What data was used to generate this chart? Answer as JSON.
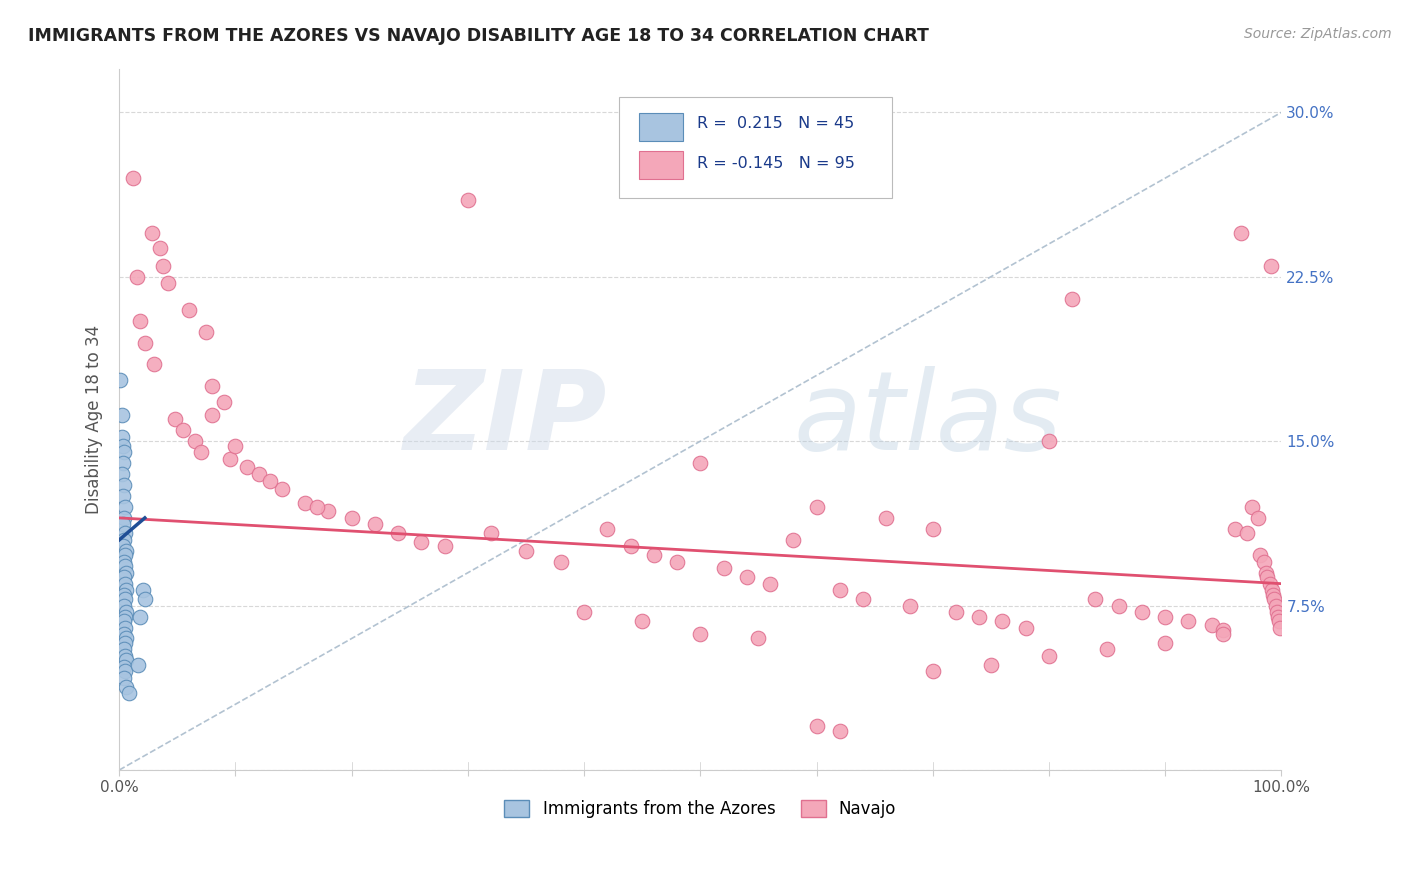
{
  "title": "IMMIGRANTS FROM THE AZORES VS NAVAJO DISABILITY AGE 18 TO 34 CORRELATION CHART",
  "source": "Source: ZipAtlas.com",
  "ylabel": "Disability Age 18 to 34",
  "xlim": [
    0,
    1.0
  ],
  "ylim": [
    0,
    0.32
  ],
  "legend_labels": [
    "Immigrants from the Azores",
    "Navajo"
  ],
  "blue_color": "#a8c4e0",
  "pink_color": "#f4a7b9",
  "blue_edge_color": "#5b8db8",
  "pink_edge_color": "#e07090",
  "blue_line_color": "#1f4e96",
  "pink_line_color": "#e05070",
  "dashed_line_color": "#aabccc",
  "R_blue": 0.215,
  "N_blue": 45,
  "R_pink": -0.145,
  "N_pink": 95,
  "blue_points": [
    [
      0.001,
      0.178
    ],
    [
      0.002,
      0.162
    ],
    [
      0.002,
      0.152
    ],
    [
      0.003,
      0.148
    ],
    [
      0.004,
      0.145
    ],
    [
      0.003,
      0.14
    ],
    [
      0.002,
      0.135
    ],
    [
      0.004,
      0.13
    ],
    [
      0.003,
      0.125
    ],
    [
      0.005,
      0.12
    ],
    [
      0.004,
      0.115
    ],
    [
      0.003,
      0.112
    ],
    [
      0.005,
      0.108
    ],
    [
      0.004,
      0.105
    ],
    [
      0.003,
      0.102
    ],
    [
      0.006,
      0.1
    ],
    [
      0.005,
      0.098
    ],
    [
      0.004,
      0.095
    ],
    [
      0.005,
      0.093
    ],
    [
      0.006,
      0.09
    ],
    [
      0.004,
      0.088
    ],
    [
      0.005,
      0.085
    ],
    [
      0.006,
      0.082
    ],
    [
      0.004,
      0.08
    ],
    [
      0.005,
      0.078
    ],
    [
      0.004,
      0.075
    ],
    [
      0.006,
      0.072
    ],
    [
      0.005,
      0.07
    ],
    [
      0.004,
      0.068
    ],
    [
      0.005,
      0.065
    ],
    [
      0.004,
      0.062
    ],
    [
      0.006,
      0.06
    ],
    [
      0.005,
      0.058
    ],
    [
      0.004,
      0.055
    ],
    [
      0.005,
      0.052
    ],
    [
      0.006,
      0.05
    ],
    [
      0.004,
      0.047
    ],
    [
      0.005,
      0.045
    ],
    [
      0.004,
      0.042
    ],
    [
      0.006,
      0.038
    ],
    [
      0.016,
      0.048
    ],
    [
      0.018,
      0.07
    ],
    [
      0.02,
      0.082
    ],
    [
      0.022,
      0.078
    ],
    [
      0.008,
      0.035
    ]
  ],
  "pink_points": [
    [
      0.012,
      0.27
    ],
    [
      0.015,
      0.225
    ],
    [
      0.028,
      0.245
    ],
    [
      0.035,
      0.238
    ],
    [
      0.038,
      0.23
    ],
    [
      0.042,
      0.222
    ],
    [
      0.018,
      0.205
    ],
    [
      0.022,
      0.195
    ],
    [
      0.06,
      0.21
    ],
    [
      0.075,
      0.2
    ],
    [
      0.08,
      0.175
    ],
    [
      0.09,
      0.168
    ],
    [
      0.048,
      0.16
    ],
    [
      0.055,
      0.155
    ],
    [
      0.065,
      0.15
    ],
    [
      0.07,
      0.145
    ],
    [
      0.03,
      0.185
    ],
    [
      0.095,
      0.142
    ],
    [
      0.11,
      0.138
    ],
    [
      0.12,
      0.135
    ],
    [
      0.14,
      0.128
    ],
    [
      0.16,
      0.122
    ],
    [
      0.18,
      0.118
    ],
    [
      0.2,
      0.115
    ],
    [
      0.24,
      0.108
    ],
    [
      0.26,
      0.104
    ],
    [
      0.28,
      0.102
    ],
    [
      0.32,
      0.108
    ],
    [
      0.35,
      0.1
    ],
    [
      0.38,
      0.095
    ],
    [
      0.3,
      0.26
    ],
    [
      0.42,
      0.11
    ],
    [
      0.44,
      0.102
    ],
    [
      0.46,
      0.098
    ],
    [
      0.48,
      0.095
    ],
    [
      0.5,
      0.14
    ],
    [
      0.52,
      0.092
    ],
    [
      0.54,
      0.088
    ],
    [
      0.56,
      0.085
    ],
    [
      0.58,
      0.105
    ],
    [
      0.6,
      0.12
    ],
    [
      0.62,
      0.082
    ],
    [
      0.64,
      0.078
    ],
    [
      0.66,
      0.115
    ],
    [
      0.68,
      0.075
    ],
    [
      0.7,
      0.11
    ],
    [
      0.72,
      0.072
    ],
    [
      0.74,
      0.07
    ],
    [
      0.76,
      0.068
    ],
    [
      0.78,
      0.065
    ],
    [
      0.8,
      0.15
    ],
    [
      0.82,
      0.215
    ],
    [
      0.84,
      0.078
    ],
    [
      0.86,
      0.075
    ],
    [
      0.88,
      0.072
    ],
    [
      0.9,
      0.07
    ],
    [
      0.92,
      0.068
    ],
    [
      0.94,
      0.066
    ],
    [
      0.95,
      0.064
    ],
    [
      0.96,
      0.11
    ],
    [
      0.965,
      0.245
    ],
    [
      0.97,
      0.108
    ],
    [
      0.975,
      0.12
    ],
    [
      0.98,
      0.115
    ],
    [
      0.982,
      0.098
    ],
    [
      0.985,
      0.095
    ],
    [
      0.987,
      0.09
    ],
    [
      0.988,
      0.088
    ],
    [
      0.99,
      0.085
    ],
    [
      0.991,
      0.23
    ],
    [
      0.992,
      0.082
    ],
    [
      0.993,
      0.08
    ],
    [
      0.994,
      0.078
    ],
    [
      0.995,
      0.075
    ],
    [
      0.996,
      0.072
    ],
    [
      0.997,
      0.07
    ],
    [
      0.998,
      0.068
    ],
    [
      0.999,
      0.065
    ],
    [
      0.6,
      0.02
    ],
    [
      0.62,
      0.018
    ],
    [
      0.5,
      0.062
    ],
    [
      0.45,
      0.068
    ],
    [
      0.4,
      0.072
    ],
    [
      0.55,
      0.06
    ],
    [
      0.7,
      0.045
    ],
    [
      0.75,
      0.048
    ],
    [
      0.8,
      0.052
    ],
    [
      0.85,
      0.055
    ],
    [
      0.9,
      0.058
    ],
    [
      0.95,
      0.062
    ],
    [
      0.1,
      0.148
    ],
    [
      0.13,
      0.132
    ],
    [
      0.17,
      0.12
    ],
    [
      0.22,
      0.112
    ],
    [
      0.08,
      0.162
    ]
  ],
  "background_color": "#ffffff",
  "grid_color": "#d8d8d8",
  "ytick_color": "#4472c4",
  "xtick_color": "#555555"
}
